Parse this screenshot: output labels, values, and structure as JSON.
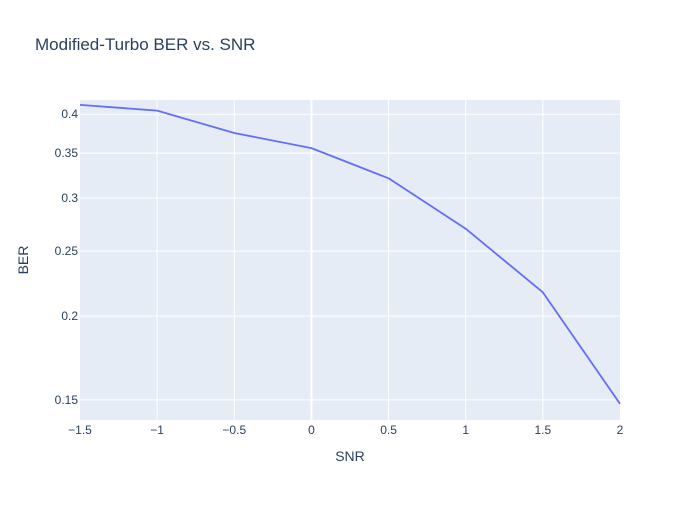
{
  "colors": {
    "background": "#ffffff",
    "plot_background": "#e5ecf6",
    "grid": "#ffffff",
    "text": "#2a3f5f",
    "line": "#636efa"
  },
  "chart_data": {
    "type": "line",
    "title": "Modified-Turbo BER vs. SNR",
    "xlabel": "SNR",
    "ylabel": "BER",
    "x_scale": "linear",
    "y_scale": "log",
    "xlim": [
      -1.5,
      2
    ],
    "ylim": [
      0.14,
      0.42
    ],
    "x_ticks": [
      -1.5,
      -1,
      -0.5,
      0,
      0.5,
      1,
      1.5,
      2
    ],
    "x_tick_labels": [
      "−1.5",
      "−1",
      "−0.5",
      "0",
      "0.5",
      "1",
      "1.5",
      "2"
    ],
    "y_ticks": [
      0.15,
      0.2,
      0.25,
      0.3,
      0.35,
      0.4
    ],
    "y_tick_labels": [
      "0.15",
      "0.2",
      "0.25",
      "0.3",
      "0.35",
      "0.4"
    ],
    "grid": true,
    "legend": "none",
    "series": [
      {
        "x": [
          -1.5,
          -1,
          -0.5,
          0,
          0.5,
          1,
          1.5,
          2
        ],
        "y": [
          0.413,
          0.405,
          0.375,
          0.356,
          0.321,
          0.27,
          0.217,
          0.148
        ]
      }
    ]
  }
}
